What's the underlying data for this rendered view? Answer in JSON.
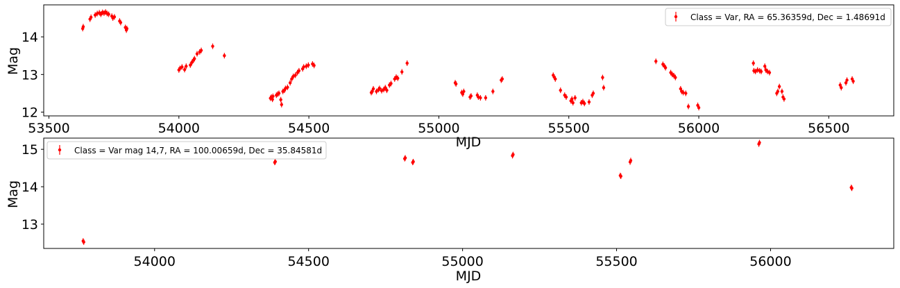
{
  "chart_data": [
    {
      "type": "scatter",
      "xlabel": "MJD",
      "ylabel": "Mag",
      "xlim": [
        53480,
        56750
      ],
      "ylim": [
        11.9,
        14.85
      ],
      "xticks": [
        53500,
        54000,
        54500,
        55000,
        55500,
        56000,
        56500
      ],
      "yticks": [
        12,
        13,
        14
      ],
      "legend": "Class = Var, RA = 65.36359d, Dec = 1.48691d",
      "legend_position": "top-right",
      "marker_color": "#ff0000",
      "series": [
        {
          "name": "Class = Var, RA = 65.36359d, Dec = 1.48691d",
          "points": [
            [
              53630,
              14.22
            ],
            [
              53632,
              14.27
            ],
            [
              53658,
              14.47
            ],
            [
              53662,
              14.52
            ],
            [
              53678,
              14.58
            ],
            [
              53686,
              14.62
            ],
            [
              53694,
              14.64
            ],
            [
              53700,
              14.6
            ],
            [
              53706,
              14.65
            ],
            [
              53712,
              14.63
            ],
            [
              53718,
              14.66
            ],
            [
              53724,
              14.62
            ],
            [
              53730,
              14.6
            ],
            [
              53742,
              14.55
            ],
            [
              53746,
              14.5
            ],
            [
              53752,
              14.53
            ],
            [
              53772,
              14.42
            ],
            [
              53776,
              14.38
            ],
            [
              53794,
              14.25
            ],
            [
              53798,
              14.18
            ],
            [
              53800,
              14.22
            ],
            [
              54000,
              13.12
            ],
            [
              54004,
              13.16
            ],
            [
              54012,
              13.2
            ],
            [
              54022,
              13.13
            ],
            [
              54028,
              13.22
            ],
            [
              54044,
              13.25
            ],
            [
              54050,
              13.32
            ],
            [
              54056,
              13.38
            ],
            [
              54060,
              13.42
            ],
            [
              54070,
              13.55
            ],
            [
              54080,
              13.6
            ],
            [
              54086,
              13.64
            ],
            [
              54130,
              13.75
            ],
            [
              54175,
              13.5
            ],
            [
              54352,
              12.37
            ],
            [
              54356,
              12.4
            ],
            [
              54360,
              12.34
            ],
            [
              54362,
              12.42
            ],
            [
              54375,
              12.45
            ],
            [
              54380,
              12.48
            ],
            [
              54385,
              12.5
            ],
            [
              54392,
              12.33
            ],
            [
              54395,
              12.2
            ],
            [
              54400,
              12.55
            ],
            [
              54406,
              12.58
            ],
            [
              54410,
              12.63
            ],
            [
              54418,
              12.66
            ],
            [
              54428,
              12.78
            ],
            [
              54434,
              12.88
            ],
            [
              54440,
              12.95
            ],
            [
              54448,
              12.98
            ],
            [
              54456,
              13.05
            ],
            [
              54462,
              13.1
            ],
            [
              54476,
              13.15
            ],
            [
              54480,
              13.2
            ],
            [
              54490,
              13.22
            ],
            [
              54498,
              13.25
            ],
            [
              54514,
              13.28
            ],
            [
              54520,
              13.24
            ],
            [
              54740,
              12.52
            ],
            [
              54744,
              12.55
            ],
            [
              54748,
              12.62
            ],
            [
              54760,
              12.55
            ],
            [
              54768,
              12.6
            ],
            [
              54772,
              12.63
            ],
            [
              54780,
              12.57
            ],
            [
              54788,
              12.6
            ],
            [
              54794,
              12.65
            ],
            [
              54800,
              12.58
            ],
            [
              54810,
              12.72
            ],
            [
              54816,
              12.76
            ],
            [
              54830,
              12.88
            ],
            [
              54836,
              12.93
            ],
            [
              54842,
              12.9
            ],
            [
              54858,
              13.07
            ],
            [
              54878,
              13.3
            ],
            [
              55063,
              12.78
            ],
            [
              55066,
              12.75
            ],
            [
              55088,
              12.52
            ],
            [
              55092,
              12.48
            ],
            [
              55096,
              12.55
            ],
            [
              55120,
              12.4
            ],
            [
              55124,
              12.43
            ],
            [
              55148,
              12.45
            ],
            [
              55152,
              12.4
            ],
            [
              55160,
              12.38
            ],
            [
              55180,
              12.38
            ],
            [
              55208,
              12.55
            ],
            [
              55240,
              12.85
            ],
            [
              55244,
              12.88
            ],
            [
              55440,
              12.98
            ],
            [
              55444,
              12.93
            ],
            [
              55448,
              12.88
            ],
            [
              55468,
              12.58
            ],
            [
              55484,
              12.45
            ],
            [
              55490,
              12.4
            ],
            [
              55508,
              12.3
            ],
            [
              55512,
              12.35
            ],
            [
              55516,
              12.25
            ],
            [
              55524,
              12.38
            ],
            [
              55548,
              12.25
            ],
            [
              55554,
              12.28
            ],
            [
              55560,
              12.23
            ],
            [
              55578,
              12.27
            ],
            [
              55590,
              12.45
            ],
            [
              55594,
              12.5
            ],
            [
              55630,
              12.92
            ],
            [
              55634,
              12.65
            ],
            [
              55835,
              13.35
            ],
            [
              55862,
              13.27
            ],
            [
              55868,
              13.22
            ],
            [
              55872,
              13.18
            ],
            [
              55892,
              13.05
            ],
            [
              55898,
              13.0
            ],
            [
              55904,
              12.97
            ],
            [
              55910,
              12.92
            ],
            [
              55930,
              12.62
            ],
            [
              55934,
              12.55
            ],
            [
              55940,
              12.52
            ],
            [
              55950,
              12.5
            ],
            [
              55960,
              12.15
            ],
            [
              55996,
              12.18
            ],
            [
              56000,
              12.12
            ],
            [
              56210,
              13.3
            ],
            [
              56212,
              13.1
            ],
            [
              56218,
              13.08
            ],
            [
              56226,
              13.12
            ],
            [
              56234,
              13.1
            ],
            [
              56240,
              13.08
            ],
            [
              56254,
              13.22
            ],
            [
              56258,
              13.12
            ],
            [
              56264,
              13.08
            ],
            [
              56272,
              13.05
            ],
            [
              56300,
              12.5
            ],
            [
              56304,
              12.55
            ],
            [
              56310,
              12.68
            ],
            [
              56320,
              12.55
            ],
            [
              56324,
              12.4
            ],
            [
              56328,
              12.35
            ],
            [
              56544,
              12.72
            ],
            [
              56548,
              12.65
            ],
            [
              56566,
              12.78
            ],
            [
              56570,
              12.85
            ],
            [
              56590,
              12.88
            ],
            [
              56594,
              12.82
            ]
          ]
        }
      ]
    },
    {
      "type": "scatter",
      "xlabel": "MJD",
      "ylabel": "Mag",
      "xlim": [
        53640,
        56400
      ],
      "ylim": [
        12.35,
        15.3
      ],
      "xticks": [
        54000,
        54500,
        55000,
        55500,
        56000
      ],
      "yticks": [
        13,
        14,
        15
      ],
      "legend": "Class = Var mag 14,7, RA = 100.00659d, Dec = 35.84581d",
      "legend_position": "top-left",
      "marker_color": "#ff0000",
      "series": [
        {
          "name": "Class = Var mag 14,7, RA = 100.00659d, Dec = 35.84581d",
          "points": [
            [
              53768,
              12.55
            ],
            [
              53770,
              12.52
            ],
            [
              54390,
              14.65
            ],
            [
              54392,
              14.67
            ],
            [
              54812,
              14.75
            ],
            [
              54814,
              14.77
            ],
            [
              54838,
              14.65
            ],
            [
              54840,
              14.67
            ],
            [
              55162,
              14.83
            ],
            [
              55164,
              14.86
            ],
            [
              55512,
              14.3
            ],
            [
              55514,
              14.28
            ],
            [
              55544,
              14.66
            ],
            [
              55546,
              14.7
            ],
            [
              55962,
              15.14
            ],
            [
              55964,
              15.18
            ],
            [
              56262,
              13.98
            ],
            [
              56264,
              13.96
            ]
          ]
        }
      ]
    }
  ]
}
